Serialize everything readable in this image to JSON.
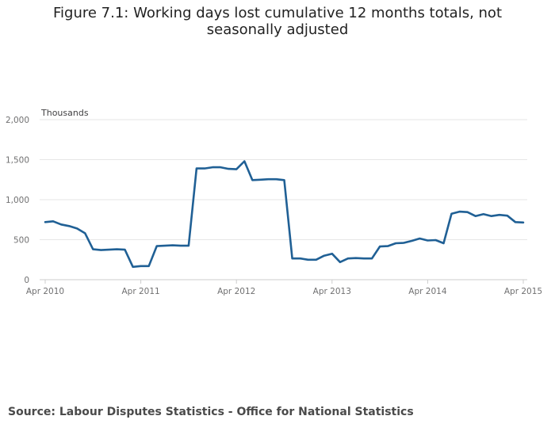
{
  "title": "Figure 7.1: Working days lost cumulative 12 months totals, not seasonally adjusted",
  "source": "Source: Labour Disputes Statistics - Office for National Statistics",
  "colors": {
    "series": "#206095",
    "grid": "#e6e6e6",
    "axis": "#cccccc",
    "text": "#707071"
  },
  "chart_data": {
    "type": "line",
    "title": "Figure 7.1: Working days lost cumulative 12 months totals, not seasonally adjusted",
    "ylabel": "Thousands",
    "xlabel": "",
    "ylim": [
      0,
      2000
    ],
    "yticks": [
      0,
      500,
      1000,
      1500,
      2000
    ],
    "ytick_labels": [
      "0",
      "500",
      "1,000",
      "1,500",
      "2,000"
    ],
    "xtick_labels": [
      "Apr 2010",
      "Apr 2011",
      "Apr 2012",
      "Apr 2013",
      "Apr 2014",
      "Apr 2015"
    ],
    "xtick_index": [
      0,
      12,
      24,
      36,
      48,
      60
    ],
    "grid": true,
    "series": [
      {
        "x": [
          "Apr 2010",
          "May 2010",
          "Jun 2010",
          "Jul 2010",
          "Aug 2010",
          "Sep 2010",
          "Oct 2010",
          "Nov 2010",
          "Dec 2010",
          "Jan 2011",
          "Feb 2011",
          "Mar 2011",
          "Apr 2011",
          "May 2011",
          "Jun 2011",
          "Jul 2011",
          "Aug 2011",
          "Sep 2011",
          "Oct 2011",
          "Nov 2011",
          "Dec 2011",
          "Jan 2012",
          "Feb 2012",
          "Mar 2012",
          "Apr 2012",
          "May 2012",
          "Jun 2012",
          "Jul 2012",
          "Aug 2012",
          "Sep 2012",
          "Oct 2012",
          "Nov 2012",
          "Dec 2012",
          "Jan 2013",
          "Feb 2013",
          "Mar 2013",
          "Apr 2013",
          "May 2013",
          "Jun 2013",
          "Jul 2013",
          "Aug 2013",
          "Sep 2013",
          "Oct 2013",
          "Nov 2013",
          "Dec 2013",
          "Jan 2014",
          "Feb 2014",
          "Mar 2014",
          "Apr 2014",
          "May 2014",
          "Jun 2014",
          "Jul 2014",
          "Aug 2014",
          "Sep 2014",
          "Oct 2014",
          "Nov 2014",
          "Dec 2014",
          "Jan 2015",
          "Feb 2015",
          "Mar 2015",
          "Apr 2015"
        ],
        "values": [
          720,
          730,
          690,
          670,
          640,
          580,
          380,
          370,
          375,
          380,
          375,
          160,
          170,
          170,
          420,
          425,
          430,
          425,
          425,
          1390,
          1390,
          1405,
          1405,
          1385,
          1380,
          1480,
          1245,
          1250,
          1255,
          1255,
          1245,
          265,
          265,
          250,
          250,
          300,
          325,
          220,
          265,
          270,
          265,
          265,
          415,
          420,
          455,
          460,
          485,
          515,
          490,
          495,
          455,
          825,
          850,
          845,
          795,
          820,
          795,
          810,
          800,
          720,
          715
        ]
      }
    ]
  }
}
